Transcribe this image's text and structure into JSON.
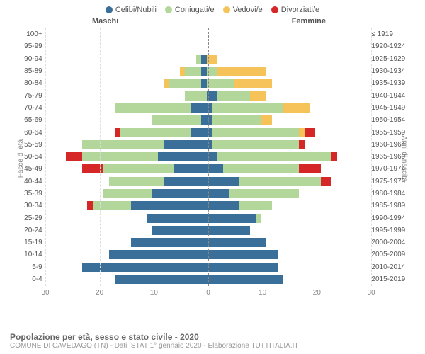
{
  "legend": [
    {
      "label": "Celibi/Nubili",
      "color": "#3a6f9a"
    },
    {
      "label": "Coniugati/e",
      "color": "#b3d69b"
    },
    {
      "label": "Vedovi/e",
      "color": "#f6c35a"
    },
    {
      "label": "Divorziati/e",
      "color": "#d62728"
    }
  ],
  "gender_left": "Maschi",
  "gender_right": "Femmine",
  "y_axis_left_title": "Fasce di età",
  "y_axis_right_title": "Anni di nascita",
  "footer_title": "Popolazione per età, sesso e stato civile - 2020",
  "footer_sub": "COMUNE DI CAVEDAGO (TN) - Dati ISTAT 1° gennaio 2020 - Elaborazione TUTTITALIA.IT",
  "x_max": 30,
  "x_ticks": [
    30,
    20,
    10,
    0,
    10,
    20,
    30
  ],
  "colors": {
    "single": "#3a6f9a",
    "married": "#b3d69b",
    "widowed": "#f6c35a",
    "divorced": "#d62728",
    "grid": "#dddddd",
    "center_line": "#888888"
  },
  "rows": [
    {
      "age": "100+",
      "birth": "≤ 1919",
      "m": {
        "s": 0,
        "c": 0,
        "w": 0,
        "d": 0
      },
      "f": {
        "s": 0,
        "c": 0,
        "w": 0,
        "d": 0
      }
    },
    {
      "age": "95-99",
      "birth": "1920-1924",
      "m": {
        "s": 0,
        "c": 0,
        "w": 0,
        "d": 0
      },
      "f": {
        "s": 0,
        "c": 0,
        "w": 0,
        "d": 0
      }
    },
    {
      "age": "90-94",
      "birth": "1925-1929",
      "m": {
        "s": 1,
        "c": 1,
        "w": 0,
        "d": 0
      },
      "f": {
        "s": 0,
        "c": 0,
        "w": 2,
        "d": 0
      }
    },
    {
      "age": "85-89",
      "birth": "1930-1934",
      "m": {
        "s": 1,
        "c": 3,
        "w": 1,
        "d": 0
      },
      "f": {
        "s": 0,
        "c": 2,
        "w": 9,
        "d": 0
      }
    },
    {
      "age": "80-84",
      "birth": "1935-1939",
      "m": {
        "s": 1,
        "c": 6,
        "w": 1,
        "d": 0
      },
      "f": {
        "s": 0,
        "c": 5,
        "w": 7,
        "d": 0
      }
    },
    {
      "age": "75-79",
      "birth": "1940-1944",
      "m": {
        "s": 0,
        "c": 4,
        "w": 0,
        "d": 0
      },
      "f": {
        "s": 2,
        "c": 6,
        "w": 3,
        "d": 0
      }
    },
    {
      "age": "70-74",
      "birth": "1945-1949",
      "m": {
        "s": 3,
        "c": 14,
        "w": 0,
        "d": 0
      },
      "f": {
        "s": 1,
        "c": 13,
        "w": 5,
        "d": 0
      }
    },
    {
      "age": "65-69",
      "birth": "1950-1954",
      "m": {
        "s": 1,
        "c": 9,
        "w": 0,
        "d": 0
      },
      "f": {
        "s": 1,
        "c": 9,
        "w": 2,
        "d": 0
      }
    },
    {
      "age": "60-64",
      "birth": "1955-1959",
      "m": {
        "s": 3,
        "c": 13,
        "w": 0,
        "d": 1
      },
      "f": {
        "s": 1,
        "c": 16,
        "w": 1,
        "d": 2
      }
    },
    {
      "age": "55-59",
      "birth": "1960-1964",
      "m": {
        "s": 8,
        "c": 15,
        "w": 0,
        "d": 0
      },
      "f": {
        "s": 1,
        "c": 16,
        "w": 0,
        "d": 1
      }
    },
    {
      "age": "50-54",
      "birth": "1965-1969",
      "m": {
        "s": 9,
        "c": 14,
        "w": 0,
        "d": 3
      },
      "f": {
        "s": 2,
        "c": 21,
        "w": 0,
        "d": 1
      }
    },
    {
      "age": "45-49",
      "birth": "1970-1974",
      "m": {
        "s": 6,
        "c": 13,
        "w": 0,
        "d": 4
      },
      "f": {
        "s": 3,
        "c": 14,
        "w": 0,
        "d": 4
      }
    },
    {
      "age": "40-44",
      "birth": "1975-1979",
      "m": {
        "s": 8,
        "c": 10,
        "w": 0,
        "d": 0
      },
      "f": {
        "s": 6,
        "c": 15,
        "w": 0,
        "d": 2
      }
    },
    {
      "age": "35-39",
      "birth": "1980-1984",
      "m": {
        "s": 10,
        "c": 9,
        "w": 0,
        "d": 0
      },
      "f": {
        "s": 4,
        "c": 13,
        "w": 0,
        "d": 0
      }
    },
    {
      "age": "30-34",
      "birth": "1985-1989",
      "m": {
        "s": 14,
        "c": 7,
        "w": 0,
        "d": 1
      },
      "f": {
        "s": 6,
        "c": 6,
        "w": 0,
        "d": 0
      }
    },
    {
      "age": "25-29",
      "birth": "1990-1994",
      "m": {
        "s": 11,
        "c": 0,
        "w": 0,
        "d": 0
      },
      "f": {
        "s": 9,
        "c": 1,
        "w": 0,
        "d": 0
      }
    },
    {
      "age": "20-24",
      "birth": "1995-1999",
      "m": {
        "s": 10,
        "c": 0,
        "w": 0,
        "d": 0
      },
      "f": {
        "s": 8,
        "c": 0,
        "w": 0,
        "d": 0
      }
    },
    {
      "age": "15-19",
      "birth": "2000-2004",
      "m": {
        "s": 14,
        "c": 0,
        "w": 0,
        "d": 0
      },
      "f": {
        "s": 11,
        "c": 0,
        "w": 0,
        "d": 0
      }
    },
    {
      "age": "10-14",
      "birth": "2005-2009",
      "m": {
        "s": 18,
        "c": 0,
        "w": 0,
        "d": 0
      },
      "f": {
        "s": 13,
        "c": 0,
        "w": 0,
        "d": 0
      }
    },
    {
      "age": "5-9",
      "birth": "2010-2014",
      "m": {
        "s": 23,
        "c": 0,
        "w": 0,
        "d": 0
      },
      "f": {
        "s": 13,
        "c": 0,
        "w": 0,
        "d": 0
      }
    },
    {
      "age": "0-4",
      "birth": "2015-2019",
      "m": {
        "s": 17,
        "c": 0,
        "w": 0,
        "d": 0
      },
      "f": {
        "s": 14,
        "c": 0,
        "w": 0,
        "d": 0
      }
    }
  ]
}
